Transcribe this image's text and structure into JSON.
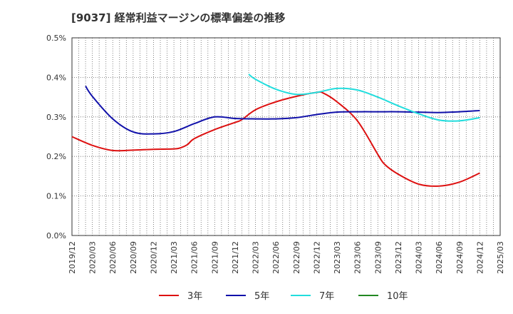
{
  "chart_data": {
    "type": "line",
    "title": "[9037]  経常利益マージンの標準偏差の推移",
    "xlabel": "",
    "ylabel": "",
    "x_ticks": [
      "2019/12",
      "2020/03",
      "2020/06",
      "2020/09",
      "2020/12",
      "2021/03",
      "2021/06",
      "2021/09",
      "2021/12",
      "2022/03",
      "2022/06",
      "2022/09",
      "2022/12",
      "2023/03",
      "2023/06",
      "2023/09",
      "2023/12",
      "2024/03",
      "2024/06",
      "2024/09",
      "2024/12",
      "2025/03"
    ],
    "y_ticks": [
      "0.0%",
      "0.1%",
      "0.2%",
      "0.3%",
      "0.4%",
      "0.5%"
    ],
    "ylim": [
      0,
      0.5
    ],
    "grid": true,
    "legend": "bottom",
    "series": [
      {
        "name": "3年",
        "color": "#dd1111",
        "points": [
          [
            "2019/12",
            0.25
          ],
          [
            "2020/03",
            0.228
          ],
          [
            "2020/06",
            0.215
          ],
          [
            "2020/09",
            0.216
          ],
          [
            "2020/12",
            0.218
          ],
          [
            "2021/03",
            0.219
          ],
          [
            "2021/04",
            0.222
          ],
          [
            "2021/05",
            0.23
          ],
          [
            "2021/06",
            0.245
          ],
          [
            "2021/09",
            0.268
          ],
          [
            "2021/12",
            0.286
          ],
          [
            "2022/01",
            0.293
          ],
          [
            "2022/03",
            0.318
          ],
          [
            "2022/06",
            0.338
          ],
          [
            "2022/09",
            0.352
          ],
          [
            "2022/12",
            0.362
          ],
          [
            "2023/01",
            0.36
          ],
          [
            "2023/03",
            0.338
          ],
          [
            "2023/06",
            0.29
          ],
          [
            "2023/09",
            0.205
          ],
          [
            "2023/10",
            0.18
          ],
          [
            "2023/12",
            0.155
          ],
          [
            "2024/03",
            0.13
          ],
          [
            "2024/06",
            0.125
          ],
          [
            "2024/09",
            0.135
          ],
          [
            "2024/12",
            0.158
          ]
        ]
      },
      {
        "name": "5年",
        "color": "#1111aa",
        "points": [
          [
            "2020/02",
            0.378
          ],
          [
            "2020/03",
            0.352
          ],
          [
            "2020/06",
            0.295
          ],
          [
            "2020/09",
            0.262
          ],
          [
            "2020/12",
            0.257
          ],
          [
            "2021/03",
            0.263
          ],
          [
            "2021/06",
            0.283
          ],
          [
            "2021/09",
            0.3
          ],
          [
            "2021/12",
            0.296
          ],
          [
            "2022/03",
            0.295
          ],
          [
            "2022/06",
            0.295
          ],
          [
            "2022/09",
            0.298
          ],
          [
            "2022/12",
            0.306
          ],
          [
            "2023/03",
            0.312
          ],
          [
            "2023/06",
            0.313
          ],
          [
            "2023/09",
            0.313
          ],
          [
            "2023/12",
            0.313
          ],
          [
            "2024/03",
            0.312
          ],
          [
            "2024/06",
            0.311
          ],
          [
            "2024/09",
            0.313
          ],
          [
            "2024/12",
            0.316
          ]
        ]
      },
      {
        "name": "7年",
        "color": "#22dddd",
        "points": [
          [
            "2022/02",
            0.408
          ],
          [
            "2022/03",
            0.395
          ],
          [
            "2022/06",
            0.37
          ],
          [
            "2022/09",
            0.357
          ],
          [
            "2022/12",
            0.362
          ],
          [
            "2023/03",
            0.372
          ],
          [
            "2023/06",
            0.368
          ],
          [
            "2023/09",
            0.35
          ],
          [
            "2023/12",
            0.328
          ],
          [
            "2024/03",
            0.308
          ],
          [
            "2024/06",
            0.292
          ],
          [
            "2024/09",
            0.29
          ],
          [
            "2024/12",
            0.298
          ]
        ]
      },
      {
        "name": "10年",
        "color": "#228822",
        "points": []
      }
    ]
  }
}
